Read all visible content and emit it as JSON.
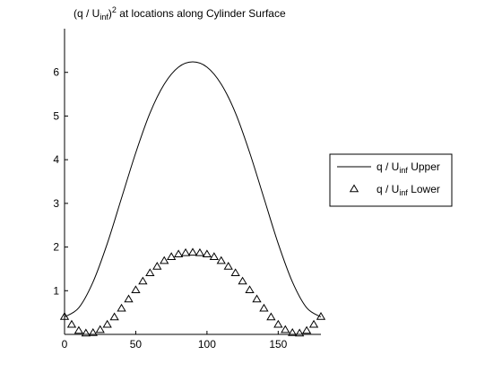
{
  "chart_data": {
    "type": "line",
    "title": {
      "prefix": "(q / U",
      "subscript": "inf",
      "mid": ")",
      "superscript": "2",
      "suffix": " at locations along Cylinder Surface"
    },
    "xlabel": "",
    "ylabel": "",
    "xlim": [
      0,
      180
    ],
    "ylim": [
      0,
      7.0
    ],
    "xticks": [
      0,
      50,
      100,
      150
    ],
    "yticks": [
      1,
      2,
      3,
      4,
      5,
      6
    ],
    "grid": false,
    "legend_position": "right",
    "series": [
      {
        "name": {
          "prefix": "q / U",
          "subscript": "inf",
          "suffix": " Upper"
        },
        "style": "line",
        "color": "#000000",
        "x": [
          0,
          10,
          20,
          30,
          40,
          50,
          60,
          70,
          80,
          90,
          100,
          110,
          120,
          130,
          140,
          150,
          160,
          170,
          180
        ],
        "y": [
          0.4,
          0.61,
          1.2,
          2.08,
          3.12,
          4.16,
          5.07,
          5.73,
          6.12,
          6.24,
          6.12,
          5.73,
          5.07,
          4.16,
          3.12,
          2.08,
          1.2,
          0.61,
          0.4
        ]
      },
      {
        "name": {
          "prefix": "q / U",
          "subscript": "inf",
          "suffix": " Lower"
        },
        "style": "markers",
        "marker": "triangle",
        "color": "#000000",
        "x": [
          0,
          5,
          10,
          15,
          20,
          25,
          30,
          35,
          40,
          45,
          50,
          55,
          60,
          65,
          70,
          75,
          80,
          85,
          90,
          95,
          100,
          105,
          110,
          115,
          120,
          125,
          130,
          135,
          140,
          145,
          150,
          155,
          160,
          165,
          170,
          175,
          180
        ],
        "y": [
          0.4,
          0.22,
          0.08,
          0.02,
          0.03,
          0.1,
          0.22,
          0.39,
          0.59,
          0.8,
          1.01,
          1.21,
          1.4,
          1.55,
          1.68,
          1.77,
          1.83,
          1.86,
          1.87,
          1.86,
          1.83,
          1.77,
          1.68,
          1.55,
          1.4,
          1.21,
          1.01,
          0.8,
          0.59,
          0.39,
          0.22,
          0.1,
          0.03,
          0.02,
          0.08,
          0.22,
          0.4
        ]
      }
    ]
  }
}
